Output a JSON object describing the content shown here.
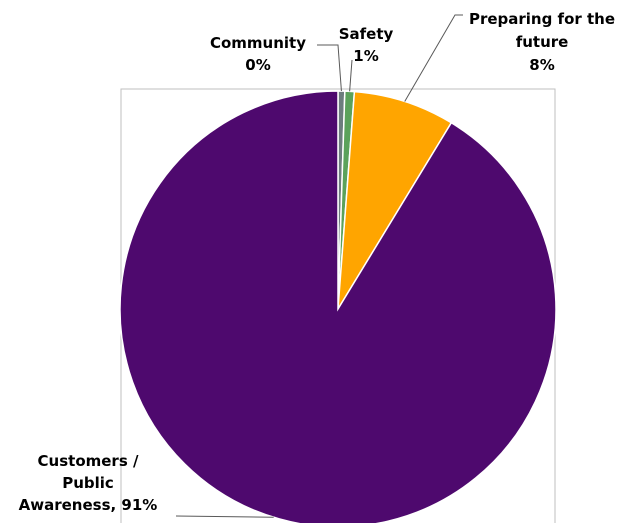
{
  "chart_data": {
    "type": "pie",
    "title": "",
    "slices": [
      {
        "label": "Community",
        "value": 0.5,
        "display": "0%",
        "color": "#6D7D7E"
      },
      {
        "label": "Safety",
        "value": 0.7,
        "display": "1%",
        "color": "#5BA25B"
      },
      {
        "label": "Preparing for the future",
        "value": 7.5,
        "display": "8%",
        "color": "#FFA500"
      },
      {
        "label": "Customers / Public Awareness",
        "value": 91.3,
        "display": "91%",
        "color": "#4E096E"
      }
    ],
    "data_labels": [
      {
        "lines": [
          "Community",
          "0%"
        ]
      },
      {
        "lines": [
          "Safety",
          "1%"
        ]
      },
      {
        "lines": [
          "Preparing for the",
          "future",
          "8%"
        ]
      },
      {
        "lines": [
          "Customers /",
          "Public",
          "Awareness, 91%"
        ]
      }
    ],
    "legend": "none"
  }
}
